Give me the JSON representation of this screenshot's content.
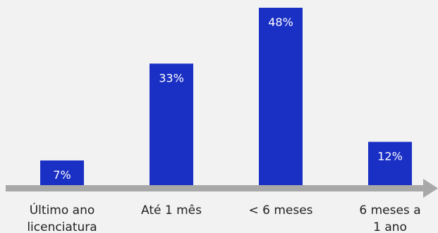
{
  "chart_data": {
    "type": "bar",
    "categories": [
      [
        "Último ano",
        "licenciatura"
      ],
      [
        "Até 1 mês"
      ],
      [
        "< 6 meses"
      ],
      [
        "6 meses a",
        "1 ano"
      ]
    ],
    "values": [
      7,
      33,
      48,
      12
    ],
    "value_labels": [
      "7%",
      "33%",
      "48%",
      "12%"
    ],
    "ylim": [
      0,
      48
    ],
    "grid": false,
    "legend": "none",
    "colors": {
      "bar": "#1a2fc4",
      "axis": "#a8a8a8",
      "background": "#f2f2f2",
      "label_text": "#ffffff",
      "category_text": "#222222"
    }
  }
}
